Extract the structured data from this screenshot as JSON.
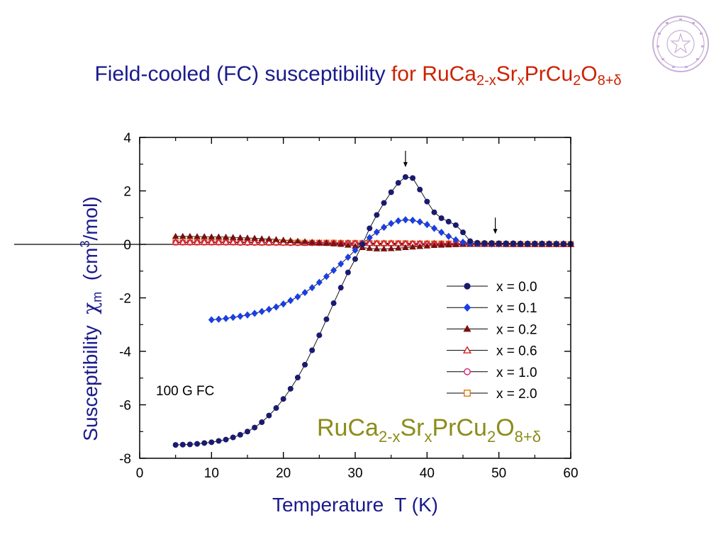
{
  "slide": {
    "title_blue": "Field-cooled (FC) susceptibility",
    "title_red_for": "for",
    "formula": {
      "a": "RuCa",
      "b": "2-x",
      "c": "Sr",
      "d": "x",
      "e": "PrCu",
      "f": "2",
      "g": "O",
      "h": "8+δ"
    }
  },
  "colors": {
    "title": "#1a1a8c",
    "title_accent": "#cc2200",
    "formula_in_plot": "#8c8c1a",
    "axis_label": "#1a1a8c"
  },
  "chart_data": {
    "type": "scatter",
    "xlabel": "Temperature  T (K)",
    "ylabel_prefix": "Susceptibility  ",
    "ylabel_chi": "χ",
    "ylabel_sub": "m",
    "ylabel_unit_open": "  (cm",
    "ylabel_sup": "3",
    "ylabel_unit_close": "/mol)",
    "xlim": [
      0,
      60
    ],
    "ylim": [
      -8,
      4
    ],
    "xticks": [
      0,
      10,
      20,
      30,
      40,
      50,
      60
    ],
    "yticks": [
      -8,
      -6,
      -4,
      -2,
      0,
      2,
      4
    ],
    "annotation": "100 G FC",
    "legend_position": "right",
    "arrows_at": [
      [
        37,
        3.5
      ],
      [
        49.5,
        1.0
      ]
    ],
    "series": [
      {
        "name": "x = 0.0",
        "marker": "circle-filled",
        "color": "#1a1a6e",
        "x": [
          5,
          6,
          7,
          8,
          9,
          10,
          11,
          12,
          13,
          14,
          15,
          16,
          17,
          18,
          19,
          20,
          21,
          22,
          23,
          24,
          25,
          26,
          27,
          28,
          29,
          30,
          31,
          32,
          33,
          34,
          35,
          36,
          37,
          38,
          39,
          40,
          41,
          42,
          43,
          44,
          45,
          46,
          47,
          48,
          49,
          50,
          51,
          52,
          53,
          54,
          55,
          56,
          57,
          58,
          59,
          60
        ],
        "y": [
          -7.5,
          -7.49,
          -7.48,
          -7.46,
          -7.43,
          -7.4,
          -7.35,
          -7.3,
          -7.22,
          -7.12,
          -7.0,
          -6.85,
          -6.65,
          -6.4,
          -6.12,
          -5.78,
          -5.4,
          -4.98,
          -4.5,
          -3.96,
          -3.4,
          -2.8,
          -2.2,
          -1.62,
          -1.05,
          -0.55,
          0.0,
          0.6,
          1.1,
          1.55,
          1.95,
          2.3,
          2.52,
          2.48,
          2.05,
          1.6,
          1.2,
          0.98,
          0.85,
          0.72,
          0.45,
          0.12,
          0.06,
          0.05,
          0.05,
          0.04,
          0.04,
          0.04,
          0.03,
          0.03,
          0.03,
          0.03,
          0.03,
          0.02,
          0.02,
          0.02
        ]
      },
      {
        "name": "x = 0.1",
        "marker": "diamond-filled",
        "color": "#1a3ee6",
        "x": [
          10,
          11,
          12,
          13,
          14,
          15,
          16,
          17,
          18,
          19,
          20,
          21,
          22,
          23,
          24,
          25,
          26,
          27,
          28,
          29,
          30,
          31,
          32,
          33,
          34,
          35,
          36,
          37,
          38,
          39,
          40,
          41,
          42,
          43,
          44,
          45,
          46,
          47,
          48,
          49,
          50,
          51,
          52,
          53,
          54,
          55,
          56,
          57,
          58,
          59,
          60
        ],
        "y": [
          -2.82,
          -2.8,
          -2.77,
          -2.73,
          -2.69,
          -2.64,
          -2.58,
          -2.51,
          -2.43,
          -2.34,
          -2.23,
          -2.1,
          -1.96,
          -1.8,
          -1.62,
          -1.42,
          -1.2,
          -0.97,
          -0.73,
          -0.48,
          -0.22,
          0.02,
          0.25,
          0.46,
          0.64,
          0.78,
          0.88,
          0.92,
          0.9,
          0.84,
          0.74,
          0.6,
          0.45,
          0.3,
          0.17,
          0.08,
          0.04,
          0.03,
          0.03,
          0.02,
          0.02,
          0.02,
          0.02,
          0.02,
          0.02,
          0.02,
          0.02,
          0.02,
          0.02,
          0.02,
          0.02
        ]
      },
      {
        "name": "x = 0.2",
        "marker": "triangle-filled",
        "color": "#7a1010",
        "x": [
          5,
          6,
          7,
          8,
          9,
          10,
          11,
          12,
          13,
          14,
          15,
          16,
          17,
          18,
          19,
          20,
          21,
          22,
          23,
          24,
          25,
          26,
          27,
          28,
          29,
          30,
          31,
          32,
          33,
          34,
          35,
          36,
          37,
          38,
          39,
          40,
          41,
          42,
          43,
          44,
          45,
          46,
          47,
          48,
          49,
          50,
          51,
          52,
          53,
          54,
          55,
          56,
          57,
          58,
          59,
          60
        ],
        "y": [
          0.3,
          0.3,
          0.3,
          0.29,
          0.29,
          0.28,
          0.28,
          0.27,
          0.26,
          0.25,
          0.24,
          0.23,
          0.21,
          0.2,
          0.18,
          0.16,
          0.14,
          0.12,
          0.1,
          0.08,
          0.06,
          0.04,
          0.02,
          0.0,
          -0.03,
          -0.07,
          -0.12,
          -0.15,
          -0.17,
          -0.17,
          -0.16,
          -0.14,
          -0.12,
          -0.1,
          -0.08,
          -0.06,
          -0.04,
          -0.03,
          -0.02,
          -0.01,
          0.0,
          0.0,
          0.0,
          0.0,
          0.0,
          0.0,
          0.0,
          0.0,
          0.0,
          0.0,
          0.0,
          0.0,
          0.0,
          0.0,
          0.0,
          0.0
        ]
      },
      {
        "name": "x = 0.6",
        "marker": "triangle-open",
        "color": "#d42020",
        "x": [
          5,
          6,
          7,
          8,
          9,
          10,
          11,
          12,
          13,
          14,
          15,
          16,
          17,
          18,
          19,
          20,
          21,
          22,
          23,
          24,
          25,
          26,
          27,
          28,
          29,
          30,
          31,
          32,
          33,
          34,
          35,
          36,
          37,
          38,
          39,
          40,
          41,
          42,
          43,
          44,
          45,
          46,
          47,
          48,
          49,
          50,
          51,
          52,
          53,
          54,
          55,
          56,
          57,
          58,
          59,
          60
        ],
        "y": [
          0.08,
          0.08,
          0.08,
          0.08,
          0.08,
          0.08,
          0.08,
          0.08,
          0.08,
          0.07,
          0.07,
          0.07,
          0.07,
          0.07,
          0.07,
          0.06,
          0.06,
          0.06,
          0.06,
          0.06,
          0.05,
          0.05,
          0.05,
          0.05,
          0.05,
          0.04,
          0.04,
          0.04,
          0.04,
          0.04,
          0.04,
          0.03,
          0.03,
          0.03,
          0.03,
          0.03,
          0.03,
          0.02,
          0.02,
          0.02,
          0.02,
          0.02,
          0.02,
          0.02,
          0.02,
          0.01,
          0.01,
          0.01,
          0.01,
          0.01,
          0.01,
          0.01,
          0.01,
          0.01,
          0.01,
          0.01
        ]
      },
      {
        "name": "x = 1.0",
        "marker": "circle-open",
        "color": "#d4207a",
        "x": [
          5,
          6,
          7,
          8,
          9,
          10,
          11,
          12,
          13,
          14,
          15,
          16,
          17,
          18,
          19,
          20,
          21,
          22,
          23,
          24,
          25,
          26,
          27,
          28,
          29,
          30,
          31,
          32,
          33,
          34,
          35,
          36,
          37,
          38,
          39,
          40,
          41,
          42,
          43,
          44,
          45,
          46,
          47,
          48,
          49,
          50,
          51,
          52,
          53,
          54,
          55,
          56,
          57,
          58,
          59,
          60
        ],
        "y": [
          0.07,
          0.07,
          0.07,
          0.07,
          0.07,
          0.07,
          0.07,
          0.07,
          0.07,
          0.06,
          0.06,
          0.06,
          0.06,
          0.06,
          0.06,
          0.06,
          0.05,
          0.05,
          0.05,
          0.05,
          0.05,
          0.05,
          0.04,
          0.04,
          0.04,
          0.04,
          0.04,
          0.04,
          0.03,
          0.03,
          0.03,
          0.03,
          0.03,
          0.03,
          0.03,
          0.02,
          0.02,
          0.02,
          0.02,
          0.02,
          0.02,
          0.02,
          0.02,
          0.01,
          0.01,
          0.01,
          0.01,
          0.01,
          0.01,
          0.01,
          0.01,
          0.01,
          0.01,
          0.01,
          0.01,
          0.01
        ]
      },
      {
        "name": "x = 2.0",
        "marker": "square-open",
        "color": "#e07a10",
        "x": [
          5,
          6,
          7,
          8,
          9,
          10,
          11,
          12,
          13,
          14,
          15,
          16,
          17,
          18,
          19,
          20,
          21,
          22,
          23,
          24,
          25,
          26,
          27,
          28,
          29,
          30,
          31,
          32,
          33,
          34,
          35,
          36,
          37,
          38,
          39,
          40,
          41,
          42,
          43,
          44,
          45,
          46,
          47,
          48,
          49,
          50,
          51,
          52,
          53,
          54,
          55,
          56,
          57,
          58,
          59,
          60
        ],
        "y": [
          0.08,
          0.08,
          0.08,
          0.08,
          0.08,
          0.08,
          0.08,
          0.08,
          0.08,
          0.08,
          0.08,
          0.08,
          0.07,
          0.07,
          0.07,
          0.07,
          0.07,
          0.07,
          0.06,
          0.06,
          0.06,
          0.06,
          0.06,
          0.05,
          0.05,
          0.05,
          0.05,
          0.05,
          0.04,
          0.04,
          0.04,
          0.04,
          0.04,
          0.03,
          0.03,
          0.03,
          0.03,
          0.03,
          0.03,
          0.02,
          0.02,
          0.02,
          0.02,
          0.02,
          0.02,
          0.02,
          0.01,
          0.01,
          0.01,
          0.01,
          0.01,
          0.01,
          0.01,
          0.01,
          0.01,
          0.01
        ]
      }
    ]
  }
}
